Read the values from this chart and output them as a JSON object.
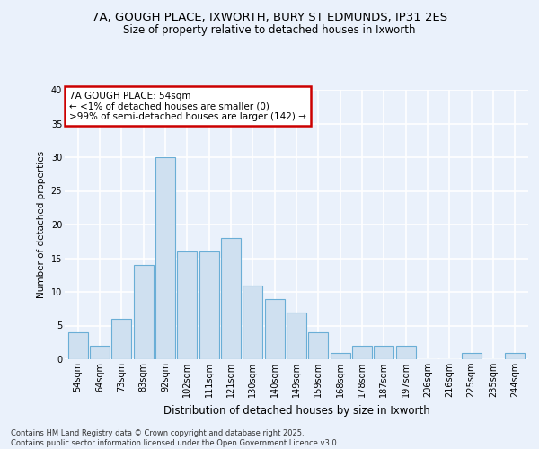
{
  "title_line1": "7A, GOUGH PLACE, IXWORTH, BURY ST EDMUNDS, IP31 2ES",
  "title_line2": "Size of property relative to detached houses in Ixworth",
  "xlabel": "Distribution of detached houses by size in Ixworth",
  "ylabel": "Number of detached properties",
  "categories": [
    "54sqm",
    "64sqm",
    "73sqm",
    "83sqm",
    "92sqm",
    "102sqm",
    "111sqm",
    "121sqm",
    "130sqm",
    "140sqm",
    "149sqm",
    "159sqm",
    "168sqm",
    "178sqm",
    "187sqm",
    "197sqm",
    "206sqm",
    "216sqm",
    "225sqm",
    "235sqm",
    "244sqm"
  ],
  "values": [
    4,
    2,
    6,
    14,
    30,
    16,
    16,
    18,
    11,
    9,
    7,
    4,
    1,
    2,
    2,
    2,
    0,
    0,
    1,
    0,
    1
  ],
  "bar_color": "#cfe0f0",
  "bar_edge_color": "#6aaed6",
  "background_color": "#eaf1fb",
  "grid_color": "#ffffff",
  "annotation_text": "7A GOUGH PLACE: 54sqm\n← <1% of detached houses are smaller (0)\n>99% of semi-detached houses are larger (142) →",
  "annotation_box_color": "#ffffff",
  "annotation_box_edge": "#cc0000",
  "footer_text": "Contains HM Land Registry data © Crown copyright and database right 2025.\nContains public sector information licensed under the Open Government Licence v3.0.",
  "ylim": [
    0,
    40
  ],
  "title_fontsize": 9.5,
  "subtitle_fontsize": 8.5,
  "ylabel_fontsize": 7.5,
  "xlabel_fontsize": 8.5,
  "tick_fontsize": 7,
  "annot_fontsize": 7.5,
  "footer_fontsize": 6
}
